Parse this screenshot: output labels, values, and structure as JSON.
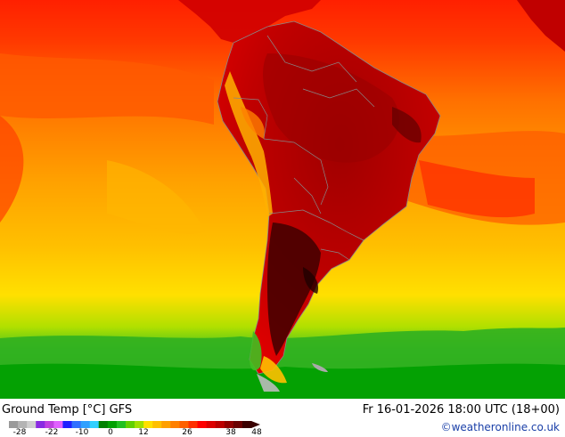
{
  "header": {
    "title": "Ground Temp [°C] GFS",
    "datetime": "Fr 16-01-2026 18:00 UTC (18+00)",
    "credit": "©weatheronline.co.uk"
  },
  "legend": {
    "ticks": [
      "-28",
      "-22",
      "-10",
      "0",
      "12",
      "26",
      "38",
      "48"
    ],
    "colors": [
      "#9a9a9a",
      "#b4b4b4",
      "#cfcfcf",
      "#8a2be2",
      "#c040e0",
      "#e060ff",
      "#2020ff",
      "#3070ff",
      "#30a0ff",
      "#30d0ff",
      "#008000",
      "#00a000",
      "#20c020",
      "#60d000",
      "#a0e000",
      "#ffe000",
      "#ffc000",
      "#ffa000",
      "#ff8000",
      "#ff6000",
      "#ff3000",
      "#ff0000",
      "#dd0000",
      "#bb0000",
      "#900000",
      "#6a0000",
      "#3a0000"
    ]
  }
}
